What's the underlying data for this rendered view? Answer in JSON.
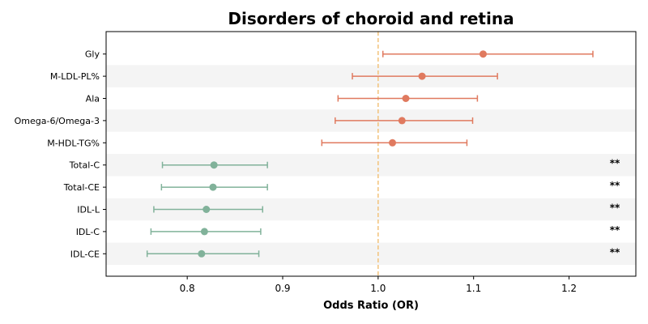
{
  "chart_data": {
    "type": "forest",
    "title": "Disorders of choroid and retina",
    "xlabel": "Odds Ratio (OR)",
    "ylabel": "",
    "xlim": [
      0.715,
      1.27
    ],
    "xticks": [
      "0.8",
      "0.9",
      "1.0",
      "1.1",
      "1.2"
    ],
    "reference_line": 1.0,
    "grid": false,
    "colors": {
      "risk": "#e07a5f",
      "protective": "#81b29a",
      "reference": "#f2c27a",
      "band": "#f4f4f4"
    },
    "rows": [
      {
        "label": "Gly",
        "or": 1.11,
        "lo": 1.005,
        "hi": 1.225,
        "group": "risk",
        "sig": ""
      },
      {
        "label": "M-LDL-PL%",
        "or": 1.046,
        "lo": 0.973,
        "hi": 1.125,
        "group": "risk",
        "sig": ""
      },
      {
        "label": "Ala",
        "or": 1.029,
        "lo": 0.958,
        "hi": 1.104,
        "group": "risk",
        "sig": ""
      },
      {
        "label": "Omega-6/Omega-3",
        "or": 1.025,
        "lo": 0.955,
        "hi": 1.099,
        "group": "risk",
        "sig": ""
      },
      {
        "label": "M-HDL-TG%",
        "or": 1.015,
        "lo": 0.941,
        "hi": 1.093,
        "group": "risk",
        "sig": ""
      },
      {
        "label": "Total-C",
        "or": 0.828,
        "lo": 0.774,
        "hi": 0.884,
        "group": "protective",
        "sig": "**"
      },
      {
        "label": "Total-CE",
        "or": 0.827,
        "lo": 0.773,
        "hi": 0.884,
        "group": "protective",
        "sig": "**"
      },
      {
        "label": "IDL-L",
        "or": 0.82,
        "lo": 0.765,
        "hi": 0.879,
        "group": "protective",
        "sig": "**"
      },
      {
        "label": "IDL-C",
        "or": 0.818,
        "lo": 0.762,
        "hi": 0.877,
        "group": "protective",
        "sig": "**"
      },
      {
        "label": "IDL-CE",
        "or": 0.815,
        "lo": 0.758,
        "hi": 0.875,
        "group": "protective",
        "sig": "**"
      }
    ]
  }
}
